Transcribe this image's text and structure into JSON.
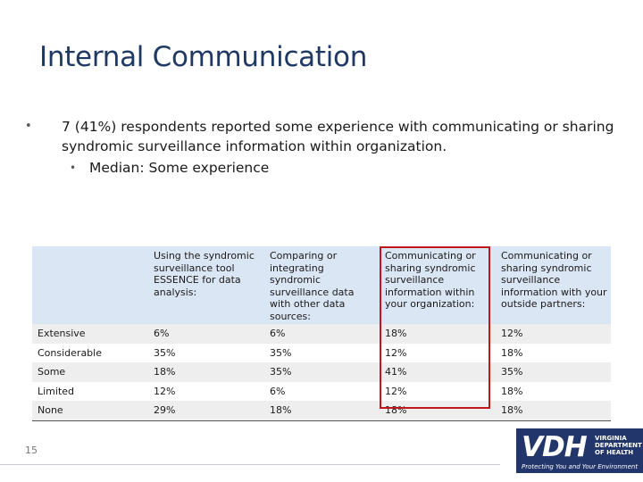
{
  "slide": {
    "title": "Internal Communication",
    "page_number": "15"
  },
  "bullets": [
    {
      "text": "7 (41%) respondents reported some experience with communicating or sharing syndromic surveillance information within organization.",
      "sub": [
        "Median: Some experience"
      ]
    }
  ],
  "table": {
    "headers": [
      "",
      "Using the syndromic surveillance tool ESSENCE for data analysis:",
      "Comparing or integrating syndromic surveillance data with other data sources:",
      "Communicating or sharing syndromic surveillance information within your organization:",
      "Communicating or sharing syndromic surveillance information with your outside partners:"
    ],
    "rows": [
      [
        "Extensive",
        "6%",
        "6%",
        "18%",
        "12%"
      ],
      [
        "Considerable",
        "35%",
        "35%",
        "12%",
        "18%"
      ],
      [
        "Some",
        "18%",
        "35%",
        "41%",
        "35%"
      ],
      [
        "Limited",
        "12%",
        "6%",
        "12%",
        "18%"
      ],
      [
        "None",
        "29%",
        "18%",
        "18%",
        "18%"
      ]
    ],
    "highlight_column": 3,
    "highlight_color": "#c0161c",
    "header_bg": "#dbe6f4"
  },
  "logo": {
    "mark": "VDH",
    "name_lines": [
      "VIRGINIA",
      "DEPARTMENT",
      "OF HEALTH"
    ],
    "tagline": "Protecting You and Your Environment",
    "bg_color": "#23366b"
  },
  "colors": {
    "title": "#1f3864",
    "row_alt": "#eeeeee"
  }
}
